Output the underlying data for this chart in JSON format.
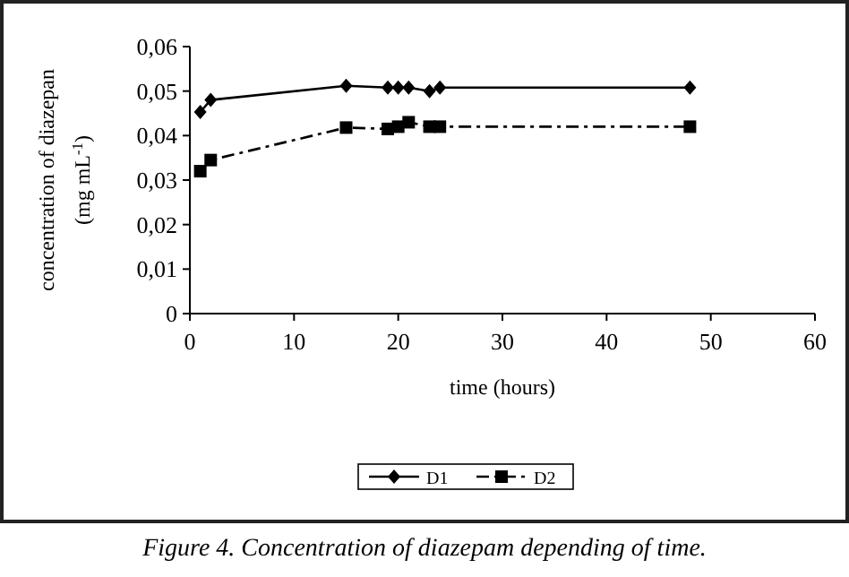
{
  "chart_data": {
    "type": "line",
    "xlabel": "time (hours)",
    "ylabel": "concentration of diazepan\n(mg mL$^{-1}$)",
    "xlim": [
      0,
      60
    ],
    "xticks": [
      0,
      10,
      20,
      30,
      40,
      50,
      60
    ],
    "ylim": [
      0,
      0.06
    ],
    "yticks": [
      {
        "value": 0,
        "label": "0"
      },
      {
        "value": 0.01,
        "label": "0,01"
      },
      {
        "value": 0.02,
        "label": "0,02"
      },
      {
        "value": 0.03,
        "label": "0,03"
      },
      {
        "value": 0.04,
        "label": "0,04"
      },
      {
        "value": 0.05,
        "label": "0,05"
      },
      {
        "value": 0.06,
        "label": "0,06"
      }
    ],
    "grid": false,
    "legend": "bottom",
    "series": [
      {
        "name": "D1",
        "color": "#000000",
        "marker": "diamond",
        "line_style": "solid",
        "x": [
          1,
          2,
          15,
          19,
          20,
          21,
          23,
          24,
          48
        ],
        "values": [
          0.0453,
          0.048,
          0.0512,
          0.0508,
          0.0508,
          0.0508,
          0.05,
          0.0508,
          0.0508
        ]
      },
      {
        "name": "D2",
        "color": "#000000",
        "marker": "square",
        "line_style": "dashed",
        "x": [
          1,
          2,
          15,
          19,
          20,
          21,
          23,
          24,
          48
        ],
        "values": [
          0.032,
          0.0345,
          0.0418,
          0.0415,
          0.042,
          0.043,
          0.042,
          0.042,
          0.042
        ]
      }
    ],
    "annotations": [
      "Figure 4. Concentration of diazepam depending of time."
    ]
  }
}
